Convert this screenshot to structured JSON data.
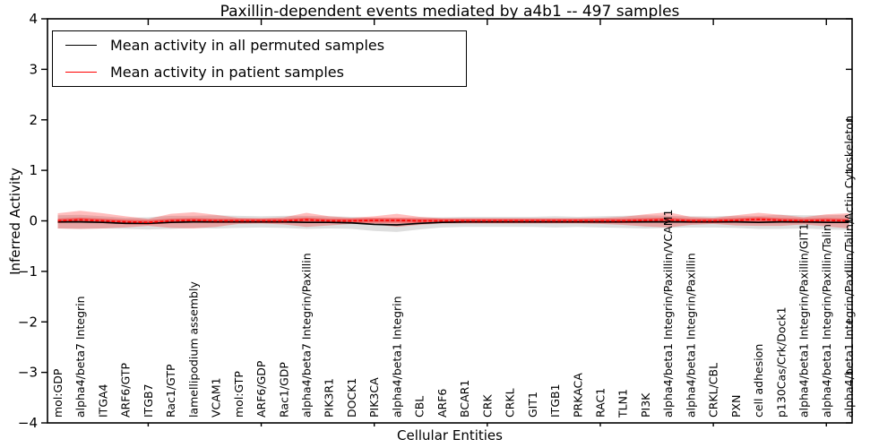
{
  "title": "Paxillin-dependent events mediated by a4b1 -- 497 samples",
  "axes": {
    "xlabel": "Cellular Entities",
    "ylabel": "Inferred Activity",
    "ytick_labels": [
      "4",
      "3",
      "2",
      "1",
      "0",
      "−1",
      "−2",
      "−3",
      "−4"
    ],
    "ylim": [
      -4,
      4
    ]
  },
  "legend": {
    "items": [
      {
        "label": "Mean activity in all permuted samples",
        "color": "#000000"
      },
      {
        "label": "Mean activity in patient samples",
        "color": "#ff0000"
      }
    ]
  },
  "chart_data": {
    "type": "line",
    "title": "Paxillin-dependent events mediated by a4b1 -- 497 samples",
    "xlabel": "Cellular Entities",
    "ylabel": "Inferred Activity",
    "ylim": [
      -4,
      4
    ],
    "grid": false,
    "legend_position": "upper left",
    "categories": [
      "mol:GDP",
      "alpha4/beta7 Integrin",
      "ITGA4",
      "ARF6/GTP",
      "ITGB7",
      "Rac1/GTP",
      "lamellipodium assembly",
      "VCAM1",
      "mol:GTP",
      "ARF6/GDP",
      "Rac1/GDP",
      "alpha4/beta7 Integrin/Paxillin",
      "PIK3R1",
      "DOCK1",
      "PIK3CA",
      "alpha4/beta1 Integrin",
      "CBL",
      "ARF6",
      "BCAR1",
      "CRK",
      "CRKL",
      "GIT1",
      "ITGB1",
      "PRKACA",
      "RAC1",
      "TLN1",
      "PI3K",
      "alpha4/beta1 Integrin/Paxillin/VCAM1",
      "alpha4/beta1 Integrin/Paxillin",
      "CRKL/CBL",
      "PXN",
      "cell adhesion",
      "p130Cas/Crk/Dock1",
      "alpha4/beta1 Integrin/Paxillin/GIT1",
      "alpha4/beta1 Integrin/Paxillin/Talin",
      "alpha4/beta1 Integrin/Paxillin/Talin/Actin Cytoskeleton"
    ],
    "series": [
      {
        "name": "Mean activity in all permuted samples",
        "color": "#000000",
        "band_color": "#b0b0b0",
        "mean": [
          -0.02,
          -0.02,
          -0.03,
          -0.05,
          -0.05,
          -0.03,
          -0.02,
          -0.02,
          -0.02,
          -0.02,
          -0.02,
          -0.03,
          -0.03,
          -0.04,
          -0.07,
          -0.08,
          -0.05,
          -0.03,
          -0.02,
          -0.02,
          -0.02,
          -0.02,
          -0.02,
          -0.02,
          -0.02,
          -0.02,
          -0.02,
          -0.02,
          -0.02,
          -0.02,
          -0.02,
          -0.03,
          -0.02,
          -0.02,
          -0.03,
          -0.03
        ],
        "band_halfwidth": [
          0.13,
          0.14,
          0.12,
          0.11,
          0.12,
          0.13,
          0.12,
          0.13,
          0.12,
          0.11,
          0.12,
          0.13,
          0.12,
          0.12,
          0.13,
          0.14,
          0.12,
          0.1,
          0.1,
          0.1,
          0.1,
          0.1,
          0.11,
          0.1,
          0.11,
          0.12,
          0.13,
          0.12,
          0.11,
          0.11,
          0.12,
          0.13,
          0.14,
          0.13,
          0.14,
          0.15
        ]
      },
      {
        "name": "Mean activity in patient samples",
        "color": "#ff0000",
        "band_color": "#ff0000",
        "mean": [
          0.0,
          0.02,
          0.0,
          -0.02,
          -0.03,
          0.0,
          0.01,
          0.0,
          0.0,
          0.0,
          0.0,
          0.02,
          0.0,
          0.0,
          0.01,
          0.01,
          0.0,
          0.0,
          0.0,
          0.0,
          0.0,
          0.0,
          0.0,
          0.0,
          0.0,
          0.0,
          0.01,
          0.02,
          0.0,
          0.0,
          0.01,
          0.03,
          0.01,
          0.0,
          0.01,
          0.0
        ],
        "band_halfwidth": [
          0.15,
          0.18,
          0.15,
          0.11,
          0.07,
          0.14,
          0.16,
          0.12,
          0.06,
          0.05,
          0.07,
          0.14,
          0.09,
          0.06,
          0.08,
          0.13,
          0.08,
          0.05,
          0.05,
          0.05,
          0.05,
          0.05,
          0.05,
          0.05,
          0.06,
          0.08,
          0.12,
          0.15,
          0.08,
          0.06,
          0.1,
          0.13,
          0.11,
          0.07,
          0.12,
          0.15
        ]
      }
    ],
    "xticks_every": 5
  }
}
